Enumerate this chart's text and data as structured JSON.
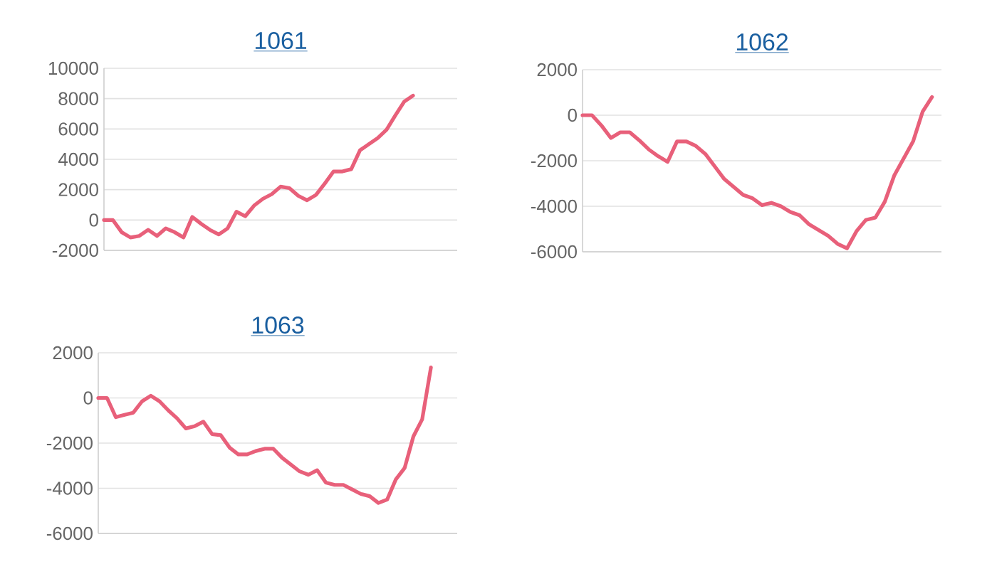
{
  "chart_data": [
    {
      "type": "line",
      "title": "1061",
      "color": "#e8607a",
      "grid": "y",
      "ylim": [
        -2000,
        10000
      ],
      "yticks": [
        -2000,
        0,
        2000,
        4000,
        6000,
        8000,
        10000
      ],
      "categories": [
        null,
        null,
        null,
        null,
        null,
        null,
        null,
        null,
        null,
        null,
        null,
        null,
        null,
        null,
        null,
        null,
        null,
        null,
        null,
        null,
        null,
        null,
        null,
        null,
        null,
        null,
        null,
        null,
        null,
        null,
        null,
        null,
        null,
        null,
        null,
        null,
        null,
        null,
        null,
        null,
        null
      ],
      "values": [
        0,
        0,
        -800,
        -1150,
        -1050,
        -650,
        -1050,
        -550,
        -800,
        -1150,
        200,
        -250,
        -650,
        -950,
        -550,
        550,
        250,
        950,
        1400,
        1700,
        2200,
        2100,
        1600,
        1300,
        1650,
        2400,
        3200,
        3200,
        3350,
        4600,
        5000,
        5400,
        5950,
        6900,
        7800,
        8200,
        null,
        null,
        null,
        null,
        null
      ]
    },
    {
      "type": "line",
      "title": "1062",
      "color": "#e8607a",
      "grid": "y",
      "ylim": [
        -6000,
        2000
      ],
      "yticks": [
        -6000,
        -4000,
        -2000,
        0,
        2000
      ],
      "categories": [
        null,
        null,
        null,
        null,
        null,
        null,
        null,
        null,
        null,
        null,
        null,
        null,
        null,
        null,
        null,
        null,
        null,
        null,
        null,
        null,
        null,
        null,
        null,
        null,
        null,
        null,
        null,
        null,
        null,
        null,
        null,
        null,
        null,
        null,
        null,
        null,
        null,
        null,
        null
      ],
      "values": [
        0,
        0,
        -450,
        -1000,
        -750,
        -750,
        -1100,
        -1500,
        -1800,
        -2050,
        -1150,
        -1150,
        -1350,
        -1700,
        -2250,
        -2800,
        -3150,
        -3500,
        -3650,
        -3950,
        -3850,
        -4000,
        -4250,
        -4400,
        -4800,
        -5050,
        -5300,
        -5650,
        -5850,
        -5100,
        -4600,
        -4500,
        -3800,
        -2650,
        -1900,
        -1150,
        150,
        800,
        null
      ]
    },
    {
      "type": "line",
      "title": "1063",
      "color": "#e8607a",
      "grid": "y",
      "ylim": [
        -6000,
        2000
      ],
      "yticks": [
        -6000,
        -4000,
        -2000,
        0,
        2000
      ],
      "categories": [
        null,
        null,
        null,
        null,
        null,
        null,
        null,
        null,
        null,
        null,
        null,
        null,
        null,
        null,
        null,
        null,
        null,
        null,
        null,
        null,
        null,
        null,
        null,
        null,
        null,
        null,
        null,
        null,
        null,
        null,
        null,
        null,
        null,
        null,
        null,
        null,
        null,
        null,
        null,
        null,
        null,
        null
      ],
      "values": [
        0,
        0,
        -850,
        -750,
        -650,
        -150,
        100,
        -150,
        -550,
        -900,
        -1350,
        -1250,
        -1050,
        -1600,
        -1650,
        -2200,
        -2500,
        -2500,
        -2350,
        -2250,
        -2250,
        -2650,
        -2950,
        -3250,
        -3400,
        -3200,
        -3750,
        -3850,
        -3850,
        -4050,
        -4250,
        -4350,
        -4650,
        -4500,
        -3600,
        -3100,
        -1700,
        -950,
        1350,
        null,
        null,
        null
      ]
    }
  ]
}
